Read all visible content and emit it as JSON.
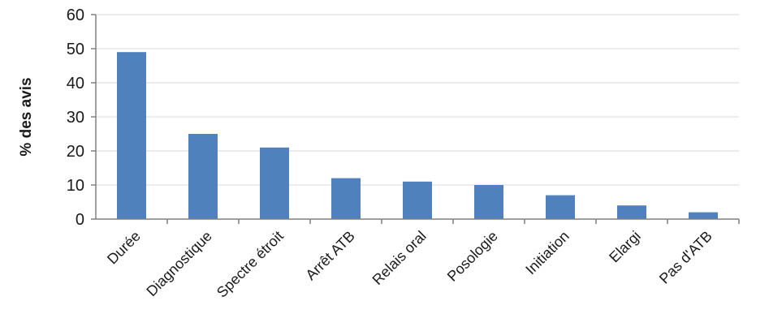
{
  "chart_data": {
    "type": "bar",
    "title": "",
    "xlabel": "",
    "ylabel": "% des avis",
    "ylim": [
      0,
      60
    ],
    "yticks": [
      0,
      10,
      20,
      30,
      40,
      50,
      60
    ],
    "grid": true,
    "legend": "none",
    "bar_color": "#4f81bd",
    "categories": [
      "Durée",
      "Diagnostique",
      "Spectre étroit",
      "Arrêt ATB",
      "Relais oral",
      "Posologie",
      "Initiation",
      "Elargi",
      "Pas d'ATB"
    ],
    "values": [
      49,
      25,
      21,
      12,
      11,
      10,
      7,
      4,
      2
    ]
  }
}
